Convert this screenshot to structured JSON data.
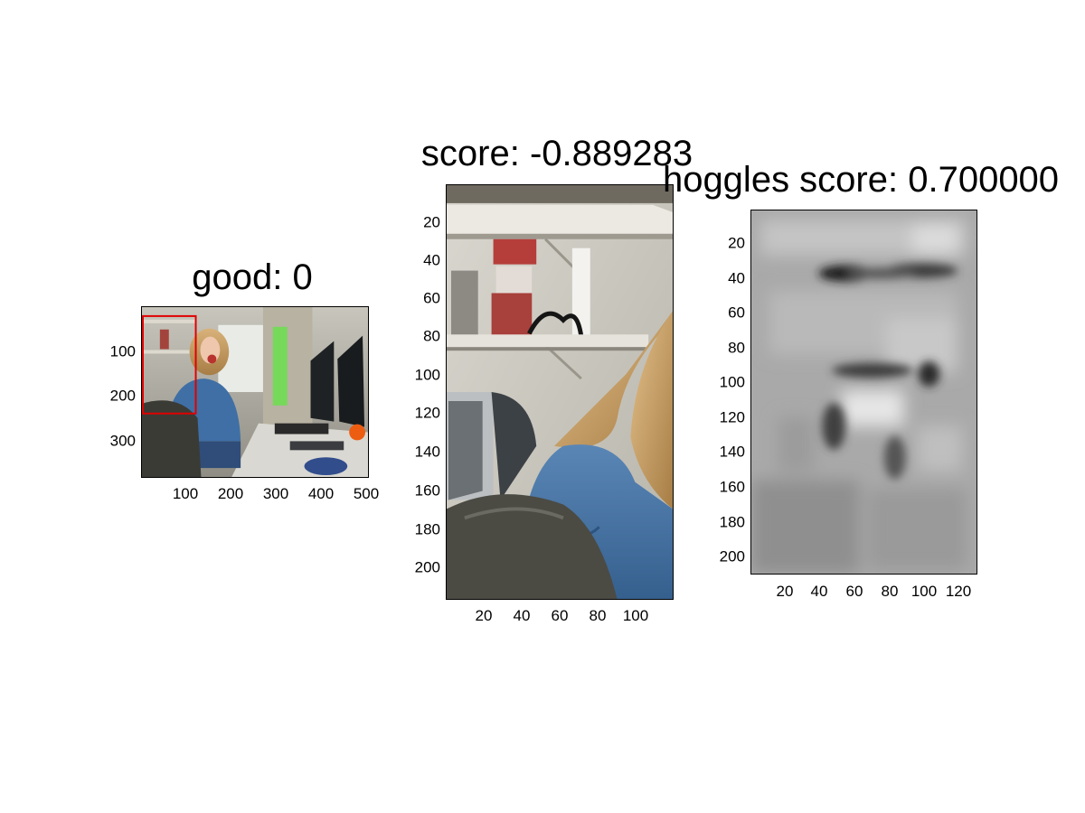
{
  "panels": {
    "left": {
      "title": "good: 0",
      "y_ticks": [
        "100",
        "200",
        "300"
      ],
      "x_ticks": [
        "100",
        "200",
        "300",
        "400",
        "500"
      ],
      "image_description": "office scene with woman at desk, red detection box top-left"
    },
    "middle": {
      "title": "score: -0.889283",
      "y_ticks": [
        "20",
        "40",
        "60",
        "80",
        "100",
        "120",
        "140",
        "160",
        "180",
        "200"
      ],
      "x_ticks": [
        "20",
        "40",
        "60",
        "80",
        "100"
      ],
      "image_description": "cropped shelf and hair/jacket region"
    },
    "right": {
      "title": "hoggles score: 0.700000",
      "y_ticks": [
        "20",
        "40",
        "60",
        "80",
        "100",
        "120",
        "140",
        "160",
        "180",
        "200"
      ],
      "x_ticks": [
        "20",
        "40",
        "60",
        "80",
        "100",
        "120"
      ],
      "image_description": "blurry grayscale HOG inversion"
    }
  },
  "colors": {
    "detection_box": "#e00000",
    "axis": "#000000"
  }
}
